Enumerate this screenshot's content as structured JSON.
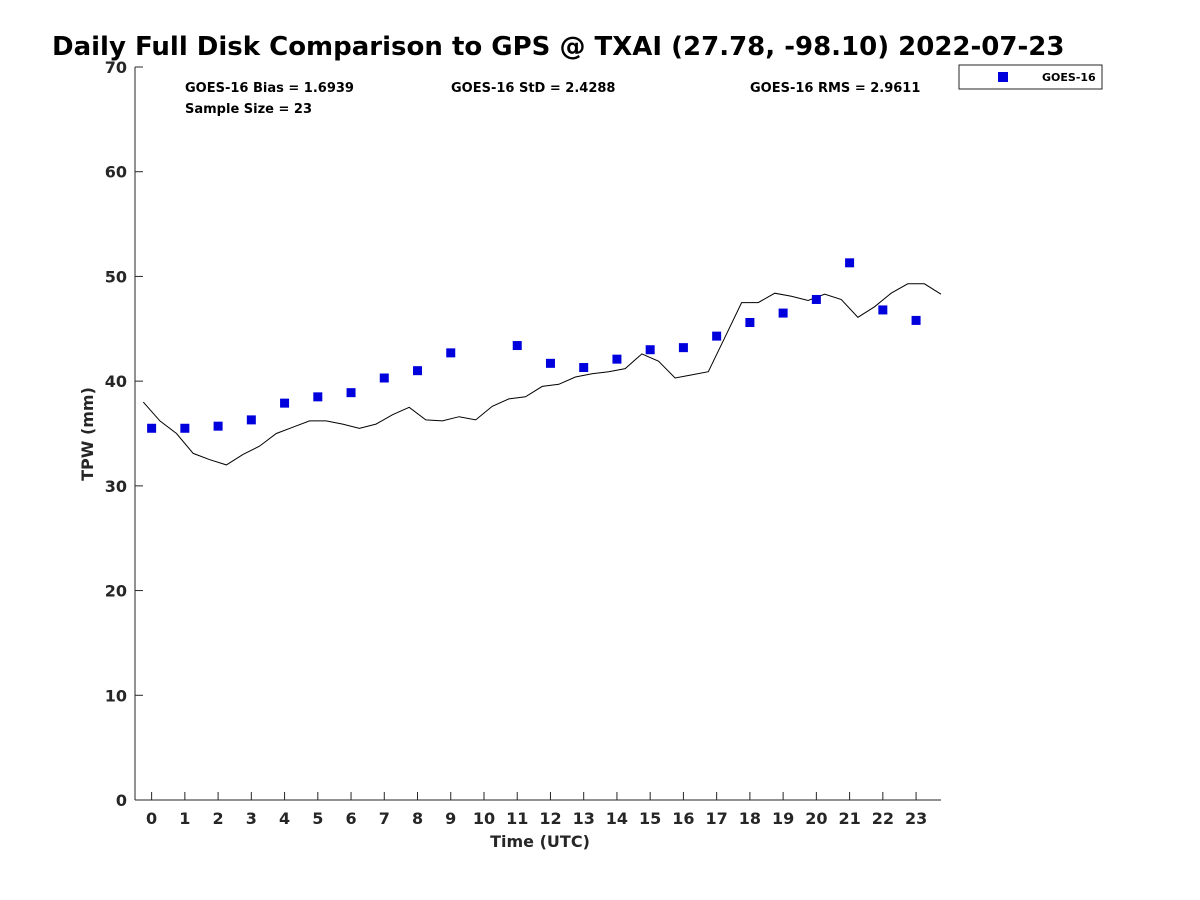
{
  "chart_data": {
    "type": "scatter",
    "title": "Daily Full Disk Comparison to GPS @ TXAI (27.78, -98.10) 2022-07-23",
    "xlabel": "Time (UTC)",
    "ylabel": "TPW (mm)",
    "xlim": [
      -0.5,
      23.75
    ],
    "ylim": [
      0,
      70
    ],
    "x_ticks": [
      0,
      1,
      2,
      3,
      4,
      5,
      6,
      7,
      8,
      9,
      10,
      11,
      12,
      13,
      14,
      15,
      16,
      17,
      18,
      19,
      20,
      21,
      22,
      23
    ],
    "y_ticks": [
      0,
      10,
      20,
      30,
      40,
      50,
      60,
      70
    ],
    "grid": false,
    "legend_position": "top-right outside",
    "stats": {
      "bias": "GOES-16 Bias = 1.6939",
      "std": "GOES-16 StD = 2.4288",
      "rms": "GOES-16 RMS = 2.9611",
      "sample_size": "Sample Size = 23"
    },
    "series": [
      {
        "name": "GOES-16",
        "kind": "markers",
        "marker": "square",
        "color": "#0000dd",
        "x": [
          0,
          1,
          2,
          3,
          4,
          5,
          6,
          7,
          8,
          9,
          11,
          12,
          13,
          14,
          15,
          16,
          17,
          18,
          19,
          20,
          21,
          22,
          23
        ],
        "y": [
          35.5,
          35.5,
          35.7,
          36.3,
          37.9,
          38.5,
          38.9,
          40.3,
          41.0,
          42.7,
          43.4,
          41.7,
          41.3,
          42.1,
          43.0,
          43.2,
          44.3,
          45.6,
          46.5,
          47.8,
          51.3,
          46.8,
          45.8
        ]
      },
      {
        "kind": "line",
        "color": "#000000",
        "x": [
          -0.25,
          0.25,
          0.75,
          1.25,
          1.75,
          2.25,
          2.75,
          3.25,
          3.75,
          4.25,
          4.75,
          5.25,
          5.75,
          6.25,
          6.75,
          7.25,
          7.75,
          8.25,
          8.75,
          9.25,
          9.75,
          10.25,
          10.75,
          11.25,
          11.75,
          12.25,
          12.75,
          13.25,
          13.75,
          14.25,
          14.75,
          15.25,
          15.75,
          16.25,
          16.75,
          17.25,
          17.75,
          18.25,
          18.75,
          19.25,
          19.75,
          20.25,
          20.75,
          21.25,
          21.75,
          22.25,
          22.75,
          23.25,
          23.75
        ],
        "y": [
          38.0,
          36.2,
          35.0,
          33.1,
          32.5,
          32.0,
          33.0,
          33.8,
          35.0,
          35.6,
          36.2,
          36.2,
          35.9,
          35.5,
          35.9,
          36.8,
          37.5,
          36.3,
          36.2,
          36.6,
          36.3,
          37.6,
          38.3,
          38.5,
          39.5,
          39.7,
          40.4,
          40.7,
          40.9,
          41.2,
          42.6,
          41.9,
          40.3,
          40.6,
          40.9,
          44.2,
          47.5,
          47.5,
          48.4,
          48.1,
          47.7,
          48.3,
          47.8,
          46.1,
          47.1,
          48.4,
          49.3,
          49.3,
          48.3
        ]
      }
    ]
  }
}
